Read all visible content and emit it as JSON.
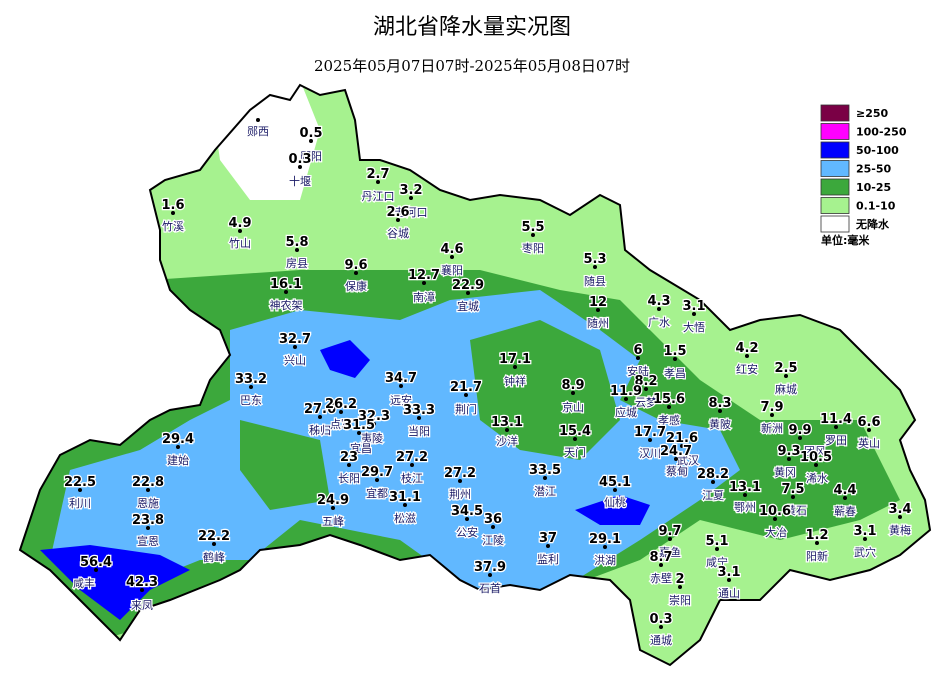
{
  "header": {
    "title": "湖北省降水量实况图",
    "subtitle": "2025年05月07日07时-2025年05月08日07时"
  },
  "legend": {
    "items": [
      {
        "label": "≥250",
        "color": "#7a0045"
      },
      {
        "label": "100-250",
        "color": "#ff00ff"
      },
      {
        "label": "50-100",
        "color": "#0000ff"
      },
      {
        "label": "25-50",
        "color": "#61b8ff"
      },
      {
        "label": "10-25",
        "color": "#3ca83c"
      },
      {
        "label": "0.1-10",
        "color": "#a6f28f"
      },
      {
        "label": "无降水",
        "color": "#ffffff"
      }
    ],
    "unit": "单位:毫米"
  },
  "stations": [
    {
      "name": "郧西"
    },
    {
      "name": "郧阳",
      "value": 0.5
    },
    {
      "name": "十堰",
      "value": 0.3
    },
    {
      "name": "丹江口",
      "value": 2.7
    },
    {
      "name": "老河口",
      "value": 3.2
    },
    {
      "name": "谷城",
      "value": 2.6
    },
    {
      "name": "竹溪",
      "value": 1.6
    },
    {
      "name": "竹山",
      "value": 4.9
    },
    {
      "name": "房县",
      "value": 5.8
    },
    {
      "name": "保康",
      "value": 9.6
    },
    {
      "name": "襄阳",
      "value": 4.6
    },
    {
      "name": "枣阳",
      "value": 5.5
    },
    {
      "name": "随县",
      "value": 5.3
    },
    {
      "name": "南漳",
      "value": 12.7
    },
    {
      "name": "宜城",
      "value": 22.9
    },
    {
      "name": "神农架",
      "value": 16.1
    },
    {
      "name": "随州",
      "value": 12
    },
    {
      "name": "广水",
      "value": 4.3
    },
    {
      "name": "大悟",
      "value": 3.1
    },
    {
      "name": "兴山",
      "value": 32.7
    },
    {
      "name": "安陆",
      "value": 6
    },
    {
      "name": "孝昌",
      "value": 1.5
    },
    {
      "name": "红安",
      "value": 4.2
    },
    {
      "name": "麻城",
      "value": 2.5
    },
    {
      "name": "钟祥",
      "value": 17.1
    },
    {
      "name": "京山",
      "value": 8.9
    },
    {
      "name": "巴东",
      "value": 33.2
    },
    {
      "name": "远安",
      "value": 34.7
    },
    {
      "name": "荆门",
      "value": 21.7
    },
    {
      "name": "云梦",
      "value": 8.2
    },
    {
      "name": "应城",
      "value": 11.9
    },
    {
      "name": "孝感",
      "value": 15.6
    },
    {
      "name": "黄陂",
      "value": 8.3
    },
    {
      "name": "新洲",
      "value": 7.9
    },
    {
      "name": "秭归",
      "value": 27.6
    },
    {
      "name": "点军",
      "value": 26.2
    },
    {
      "name": "夷陵",
      "value": 32.3
    },
    {
      "name": "宜昌",
      "value": 31.5
    },
    {
      "name": "当阳",
      "value": 33.3
    },
    {
      "name": "沙洋",
      "value": 13.1
    },
    {
      "name": "天门",
      "value": 15.4
    },
    {
      "name": "汉川",
      "value": 17.7
    },
    {
      "name": "武汉",
      "value": 21.6
    },
    {
      "name": "蔡甸",
      "value": 24.7
    },
    {
      "name": "罗田",
      "value": 11.4
    },
    {
      "name": "团风",
      "value": 9.9
    },
    {
      "name": "黄冈",
      "value": 9.3
    },
    {
      "name": "浠水",
      "value": 10.5
    },
    {
      "name": "英山",
      "value": 6.6
    },
    {
      "name": "建始",
      "value": 29.4
    },
    {
      "name": "长阳",
      "value": 23
    },
    {
      "name": "枝江",
      "value": 27.2
    },
    {
      "name": "宜都",
      "value": 29.7
    },
    {
      "name": "荆州",
      "value": 27.2
    },
    {
      "name": "潜江",
      "value": 33.5
    },
    {
      "name": "仙桃",
      "value": 45.1
    },
    {
      "name": "江夏",
      "value": 28.2
    },
    {
      "name": "鄂州",
      "value": 13.1
    },
    {
      "name": "黄石",
      "value": 7.5
    },
    {
      "name": "大冶",
      "value": 10.6
    },
    {
      "name": "蕲春",
      "value": 4.4
    },
    {
      "name": "黄梅",
      "value": 3.4
    },
    {
      "name": "利川",
      "value": 22.5
    },
    {
      "name": "恩施",
      "value": 22.8
    },
    {
      "name": "五峰",
      "value": 24.9
    },
    {
      "name": "松滋",
      "value": 31.1
    },
    {
      "name": "公安",
      "value": 34.5
    },
    {
      "name": "江陵",
      "value": 36
    },
    {
      "name": "监利",
      "value": 37
    },
    {
      "name": "洪湖",
      "value": 29.1
    },
    {
      "name": "嘉鱼",
      "value": 9.7
    },
    {
      "name": "咸宁",
      "value": 5.1
    },
    {
      "name": "阳新",
      "value": 1.2
    },
    {
      "name": "武穴",
      "value": 3.1
    },
    {
      "name": "宣恩",
      "value": 23.8
    },
    {
      "name": "鹤峰",
      "value": 22.2
    },
    {
      "name": "赤壁",
      "value": 8.7
    },
    {
      "name": "崇阳",
      "value": 2
    },
    {
      "name": "通山",
      "value": 3.1
    },
    {
      "name": "咸丰",
      "value": 56.4
    },
    {
      "name": "来凤",
      "value": 42.3
    },
    {
      "name": "石首",
      "value": 37.9
    },
    {
      "name": "通城",
      "value": 0.3
    }
  ]
}
